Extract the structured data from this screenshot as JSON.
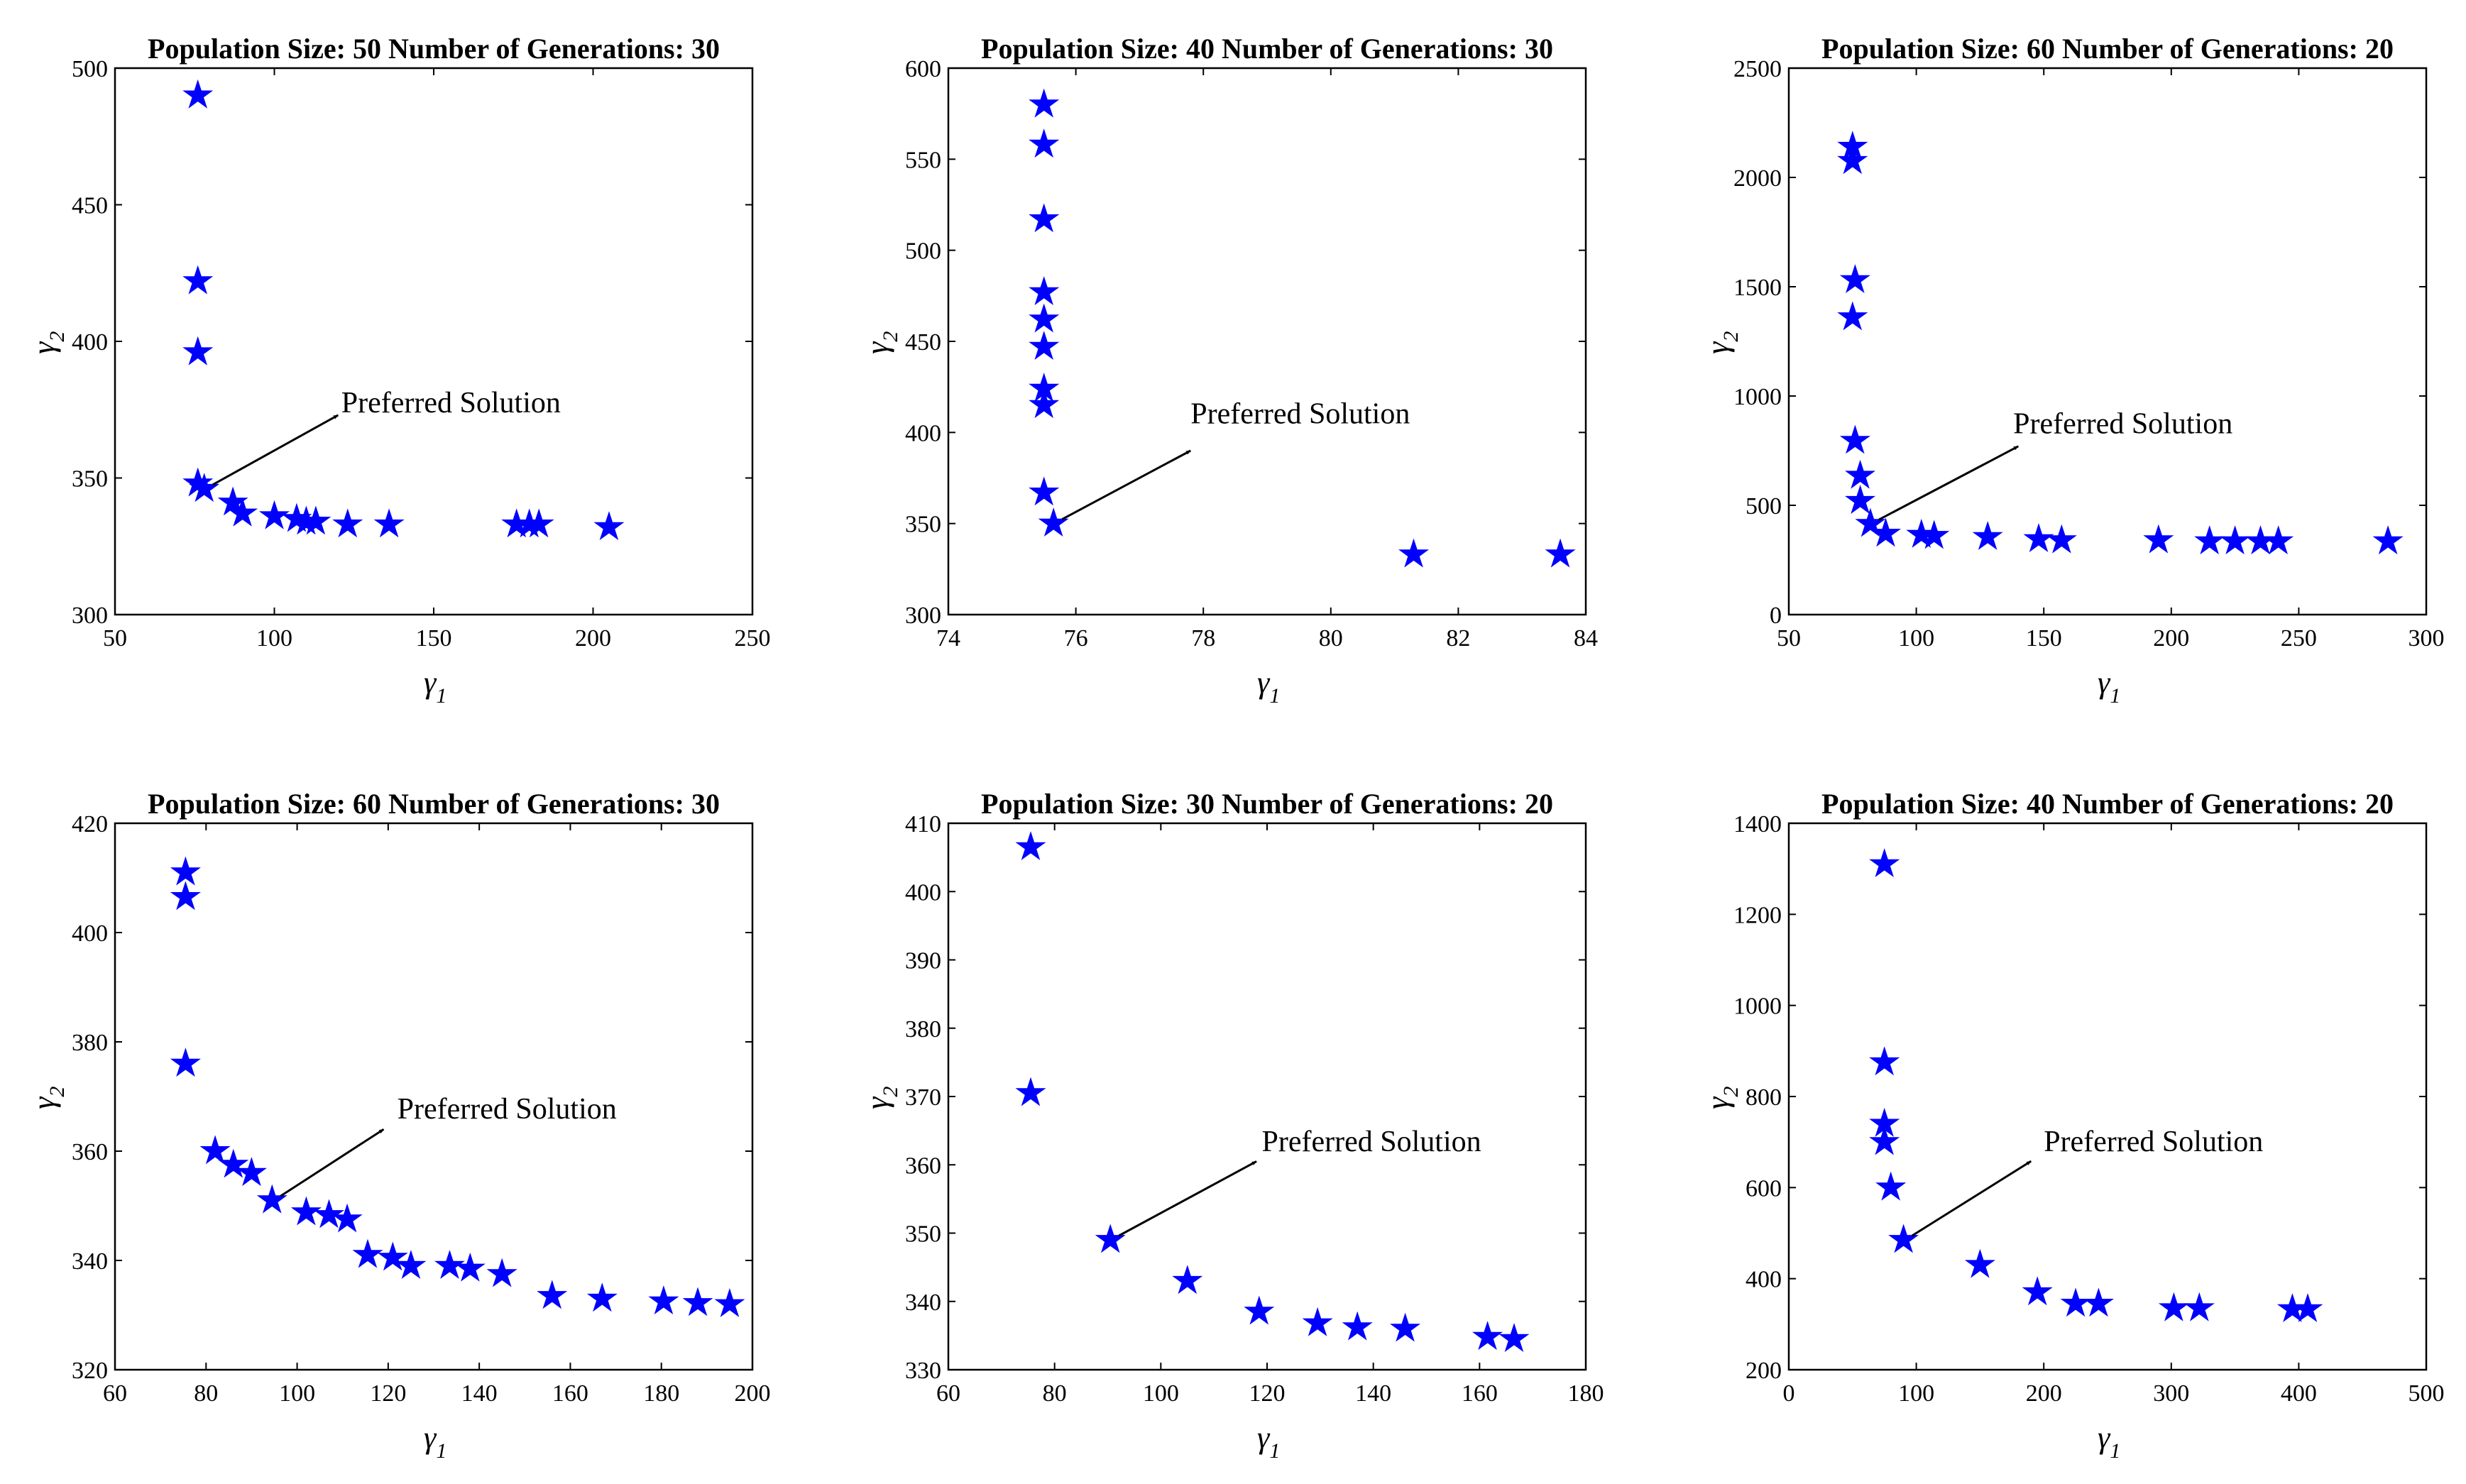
{
  "chart_data": [
    {
      "type": "scatter",
      "title": "Population Size: 50 Number of Generations: 30",
      "xlabel": "γ",
      "xlabel_sub": "1",
      "ylabel": "γ",
      "ylabel_sub": "2",
      "xlim": [
        50,
        250
      ],
      "ylim": [
        300,
        500
      ],
      "xticks": [
        50,
        100,
        150,
        200,
        250
      ],
      "yticks": [
        300,
        350,
        400,
        450,
        500
      ],
      "marker": "pentagram",
      "color": "#0000ff",
      "points": [
        [
          76,
          490
        ],
        [
          76,
          422
        ],
        [
          76,
          396
        ],
        [
          76,
          348
        ],
        [
          78,
          346
        ],
        [
          87,
          341
        ],
        [
          90,
          337
        ],
        [
          100,
          336
        ],
        [
          107,
          335
        ],
        [
          110,
          334
        ],
        [
          113,
          334
        ],
        [
          123,
          333
        ],
        [
          136,
          333
        ],
        [
          176,
          333
        ],
        [
          180,
          333
        ],
        [
          183,
          333
        ],
        [
          205,
          332
        ]
      ],
      "annotation": {
        "text": "Preferred Solution",
        "from": [
          78,
          346
        ],
        "to": [
          120,
          373
        ],
        "text_at": [
          121,
          374
        ]
      }
    },
    {
      "type": "scatter",
      "title": "Population Size: 40 Number of Generations: 30",
      "xlabel": "γ",
      "xlabel_sub": "1",
      "ylabel": "γ",
      "ylabel_sub": "2",
      "xlim": [
        74,
        84
      ],
      "ylim": [
        300,
        600
      ],
      "xticks": [
        74,
        76,
        78,
        80,
        82,
        84
      ],
      "yticks": [
        300,
        350,
        400,
        450,
        500,
        550,
        600
      ],
      "marker": "pentagram",
      "color": "#0000ff",
      "points": [
        [
          75.5,
          580
        ],
        [
          75.5,
          558
        ],
        [
          75.5,
          517
        ],
        [
          75.5,
          477
        ],
        [
          75.5,
          462
        ],
        [
          75.5,
          447
        ],
        [
          75.5,
          424
        ],
        [
          75.5,
          415
        ],
        [
          75.5,
          367
        ],
        [
          75.65,
          350
        ],
        [
          81.3,
          333
        ],
        [
          83.6,
          333
        ]
      ],
      "annotation": {
        "text": "Preferred Solution",
        "from": [
          75.65,
          350
        ],
        "to": [
          77.8,
          390
        ],
        "text_at": [
          77.8,
          405
        ]
      }
    },
    {
      "type": "scatter",
      "title": "Population Size: 60 Number of Generations: 20",
      "xlabel": "γ",
      "xlabel_sub": "1",
      "ylabel": "γ",
      "ylabel_sub": "2",
      "xlim": [
        50,
        300
      ],
      "ylim": [
        0,
        2500
      ],
      "xticks": [
        50,
        100,
        150,
        200,
        250,
        300
      ],
      "yticks": [
        0,
        500,
        1000,
        1500,
        2000,
        2500
      ],
      "marker": "pentagram",
      "color": "#0000ff",
      "points": [
        [
          75,
          2140
        ],
        [
          75,
          2075
        ],
        [
          76,
          1530
        ],
        [
          75,
          1360
        ],
        [
          76,
          795
        ],
        [
          78,
          635
        ],
        [
          78,
          520
        ],
        [
          82,
          415
        ],
        [
          88,
          370
        ],
        [
          102,
          365
        ],
        [
          107,
          360
        ],
        [
          128,
          355
        ],
        [
          148,
          345
        ],
        [
          157,
          340
        ],
        [
          195,
          340
        ],
        [
          215,
          335
        ],
        [
          225,
          335
        ],
        [
          235,
          335
        ],
        [
          242,
          335
        ],
        [
          285,
          335
        ]
      ],
      "annotation": {
        "text": "Preferred Solution",
        "from": [
          82,
          415
        ],
        "to": [
          140,
          770
        ],
        "text_at": [
          138,
          830
        ]
      }
    },
    {
      "type": "scatter",
      "title": "Population Size: 60 Number of Generations: 30",
      "xlabel": "γ",
      "xlabel_sub": "1",
      "ylabel": "γ",
      "ylabel_sub": "2",
      "xlim": [
        60,
        200
      ],
      "ylim": [
        320,
        420
      ],
      "xticks": [
        60,
        80,
        100,
        120,
        140,
        160,
        180,
        200
      ],
      "yticks": [
        320,
        340,
        360,
        380,
        400,
        420
      ],
      "marker": "pentagram",
      "color": "#0000ff",
      "points": [
        [
          75.5,
          411
        ],
        [
          75.5,
          406.5
        ],
        [
          75.5,
          376
        ],
        [
          82,
          360
        ],
        [
          86,
          357.5
        ],
        [
          90,
          356
        ],
        [
          94.5,
          351
        ],
        [
          102,
          348.8
        ],
        [
          107,
          348.3
        ],
        [
          111,
          347.5
        ],
        [
          115.5,
          341
        ],
        [
          121,
          340.5
        ],
        [
          125,
          339
        ],
        [
          133.5,
          339
        ],
        [
          138,
          338.5
        ],
        [
          145,
          337.5
        ],
        [
          156,
          333.5
        ],
        [
          167,
          333
        ],
        [
          180.5,
          332.5
        ],
        [
          188,
          332.2
        ],
        [
          195,
          332
        ]
      ],
      "annotation": {
        "text": "Preferred Solution",
        "from": [
          94.5,
          351
        ],
        "to": [
          119,
          364
        ],
        "text_at": [
          122,
          366
        ]
      }
    },
    {
      "type": "scatter",
      "title": "Population Size: 30 Number of Generations: 20",
      "xlabel": "γ",
      "xlabel_sub": "1",
      "ylabel": "γ",
      "ylabel_sub": "2",
      "xlim": [
        60,
        180
      ],
      "ylim": [
        330,
        410
      ],
      "xticks": [
        60,
        80,
        100,
        120,
        140,
        160,
        180
      ],
      "yticks": [
        330,
        340,
        350,
        360,
        370,
        380,
        390,
        400,
        410
      ],
      "marker": "pentagram",
      "color": "#0000ff",
      "points": [
        [
          75.5,
          406.5
        ],
        [
          75.5,
          370.5
        ],
        [
          90.5,
          349
        ],
        [
          105,
          343
        ],
        [
          118.5,
          338.5
        ],
        [
          129.5,
          336.8
        ],
        [
          137,
          336.2
        ],
        [
          146,
          336
        ],
        [
          161.5,
          334.8
        ],
        [
          166.5,
          334.5
        ]
      ],
      "annotation": {
        "text": "Preferred Solution",
        "from": [
          90.5,
          349
        ],
        "to": [
          118,
          360.5
        ],
        "text_at": [
          119,
          362
        ]
      }
    },
    {
      "type": "scatter",
      "title": "Population Size: 40 Number of Generations: 20",
      "xlabel": "γ",
      "xlabel_sub": "1",
      "ylabel": "γ",
      "ylabel_sub": "2",
      "xlim": [
        0,
        500
      ],
      "ylim": [
        200,
        1400
      ],
      "xticks": [
        0,
        100,
        200,
        300,
        400,
        500
      ],
      "yticks": [
        200,
        400,
        600,
        800,
        1000,
        1200,
        1400
      ],
      "marker": "pentagram",
      "color": "#0000ff",
      "points": [
        [
          75,
          1310
        ],
        [
          75,
          875
        ],
        [
          75,
          740
        ],
        [
          75,
          700
        ],
        [
          80,
          600
        ],
        [
          90,
          485
        ],
        [
          150,
          430
        ],
        [
          195,
          370
        ],
        [
          225,
          345
        ],
        [
          243,
          345
        ],
        [
          302,
          335
        ],
        [
          322,
          335
        ],
        [
          395,
          333
        ],
        [
          407,
          333
        ]
      ],
      "annotation": {
        "text": "Preferred Solution",
        "from": [
          90,
          485
        ],
        "to": [
          190,
          658
        ],
        "text_at": [
          200,
          680
        ]
      }
    }
  ],
  "colors": {
    "marker": "#0000ff",
    "axes": "#000000",
    "background": "#ffffff"
  }
}
